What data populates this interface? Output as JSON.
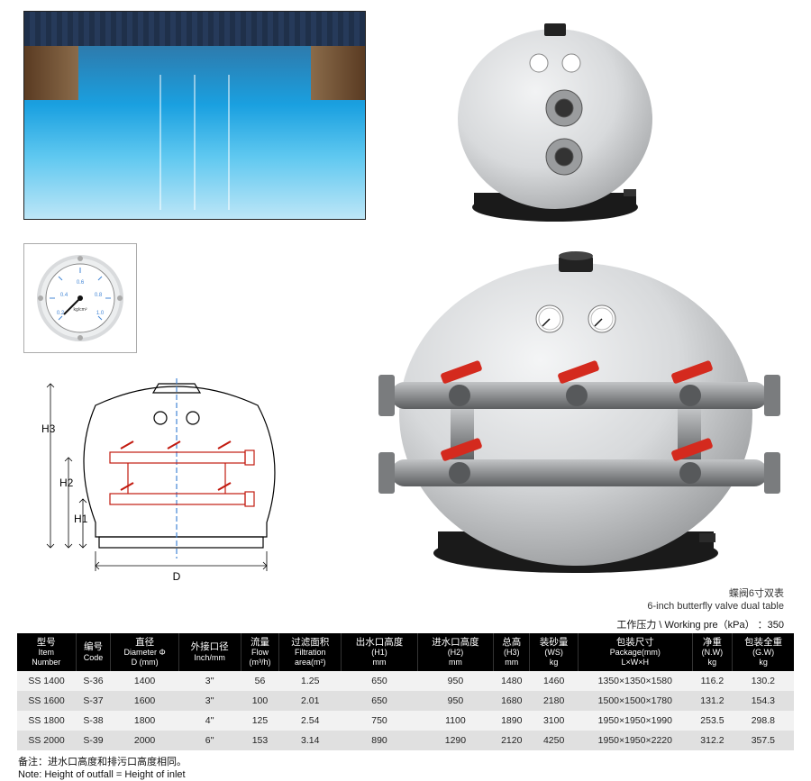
{
  "colors": {
    "tank_body": "#e2e3e5",
    "tank_shadow": "#b8babc",
    "tank_base": "#1a1a1a",
    "valve_handle": "#d42a1e",
    "pipe": "#9a9c9e",
    "pipe_dark": "#6e7072",
    "gauge_face": "#ffffff",
    "gauge_rim": "#bfc2c5",
    "tech_line": "#000000",
    "tech_valve": "#c21a0f",
    "tech_blue": "#4487d6"
  },
  "captions": {
    "cn": "蝶阀6寸双表",
    "en": "6-inch butterfly valve dual table"
  },
  "working_pressure": {
    "label_cn": "工作压力",
    "label_en": "Working pre（kPa）",
    "value": "350"
  },
  "tech_labels": {
    "H1": "H1",
    "H2": "H2",
    "H3": "H3",
    "D": "D"
  },
  "table": {
    "headers": [
      {
        "cn": "型号",
        "en": "Item",
        "sub": "Number"
      },
      {
        "cn": "编号",
        "en": "Code",
        "sub": ""
      },
      {
        "cn": "直径",
        "en": "Diameter Φ",
        "sub": "D (mm)"
      },
      {
        "cn": "外接口径",
        "en": "Inch/mm",
        "sub": ""
      },
      {
        "cn": "流量",
        "en": "Flow",
        "sub": "(m³/h)"
      },
      {
        "cn": "过滤面积",
        "en": "Filtration",
        "sub": "area(m²)"
      },
      {
        "cn": "出水口高度",
        "en": "(H1)",
        "sub": "mm"
      },
      {
        "cn": "进水口高度",
        "en": "(H2)",
        "sub": "mm"
      },
      {
        "cn": "总高",
        "en": "(H3)",
        "sub": "mm"
      },
      {
        "cn": "装砂量",
        "en": "(WS)",
        "sub": "kg"
      },
      {
        "cn": "包装尺寸",
        "en": "Package(mm)",
        "sub": "L×W×H"
      },
      {
        "cn": "净重",
        "en": "(N.W)",
        "sub": "kg"
      },
      {
        "cn": "包装全重",
        "en": "(G.W)",
        "sub": "kg"
      }
    ],
    "rows": [
      [
        "SS 1400",
        "S-36",
        "1400",
        "3''",
        "56",
        "1.25",
        "650",
        "950",
        "1480",
        "1460",
        "1350×1350×1580",
        "116.2",
        "130.2"
      ],
      [
        "SS 1600",
        "S-37",
        "1600",
        "3''",
        "100",
        "2.01",
        "650",
        "950",
        "1680",
        "2180",
        "1500×1500×1780",
        "131.2",
        "154.3"
      ],
      [
        "SS 1800",
        "S-38",
        "1800",
        "4''",
        "125",
        "2.54",
        "750",
        "1100",
        "1890",
        "3100",
        "1950×1950×1990",
        "253.5",
        "298.8"
      ],
      [
        "SS 2000",
        "S-39",
        "2000",
        "6''",
        "153",
        "3.14",
        "890",
        "1290",
        "2120",
        "4250",
        "1950×1950×2220",
        "312.2",
        "357.5"
      ]
    ]
  },
  "note": {
    "cn": "备注：进水口高度和排污口高度相同。",
    "en": "Note: Height of outfall = Height of inlet"
  }
}
